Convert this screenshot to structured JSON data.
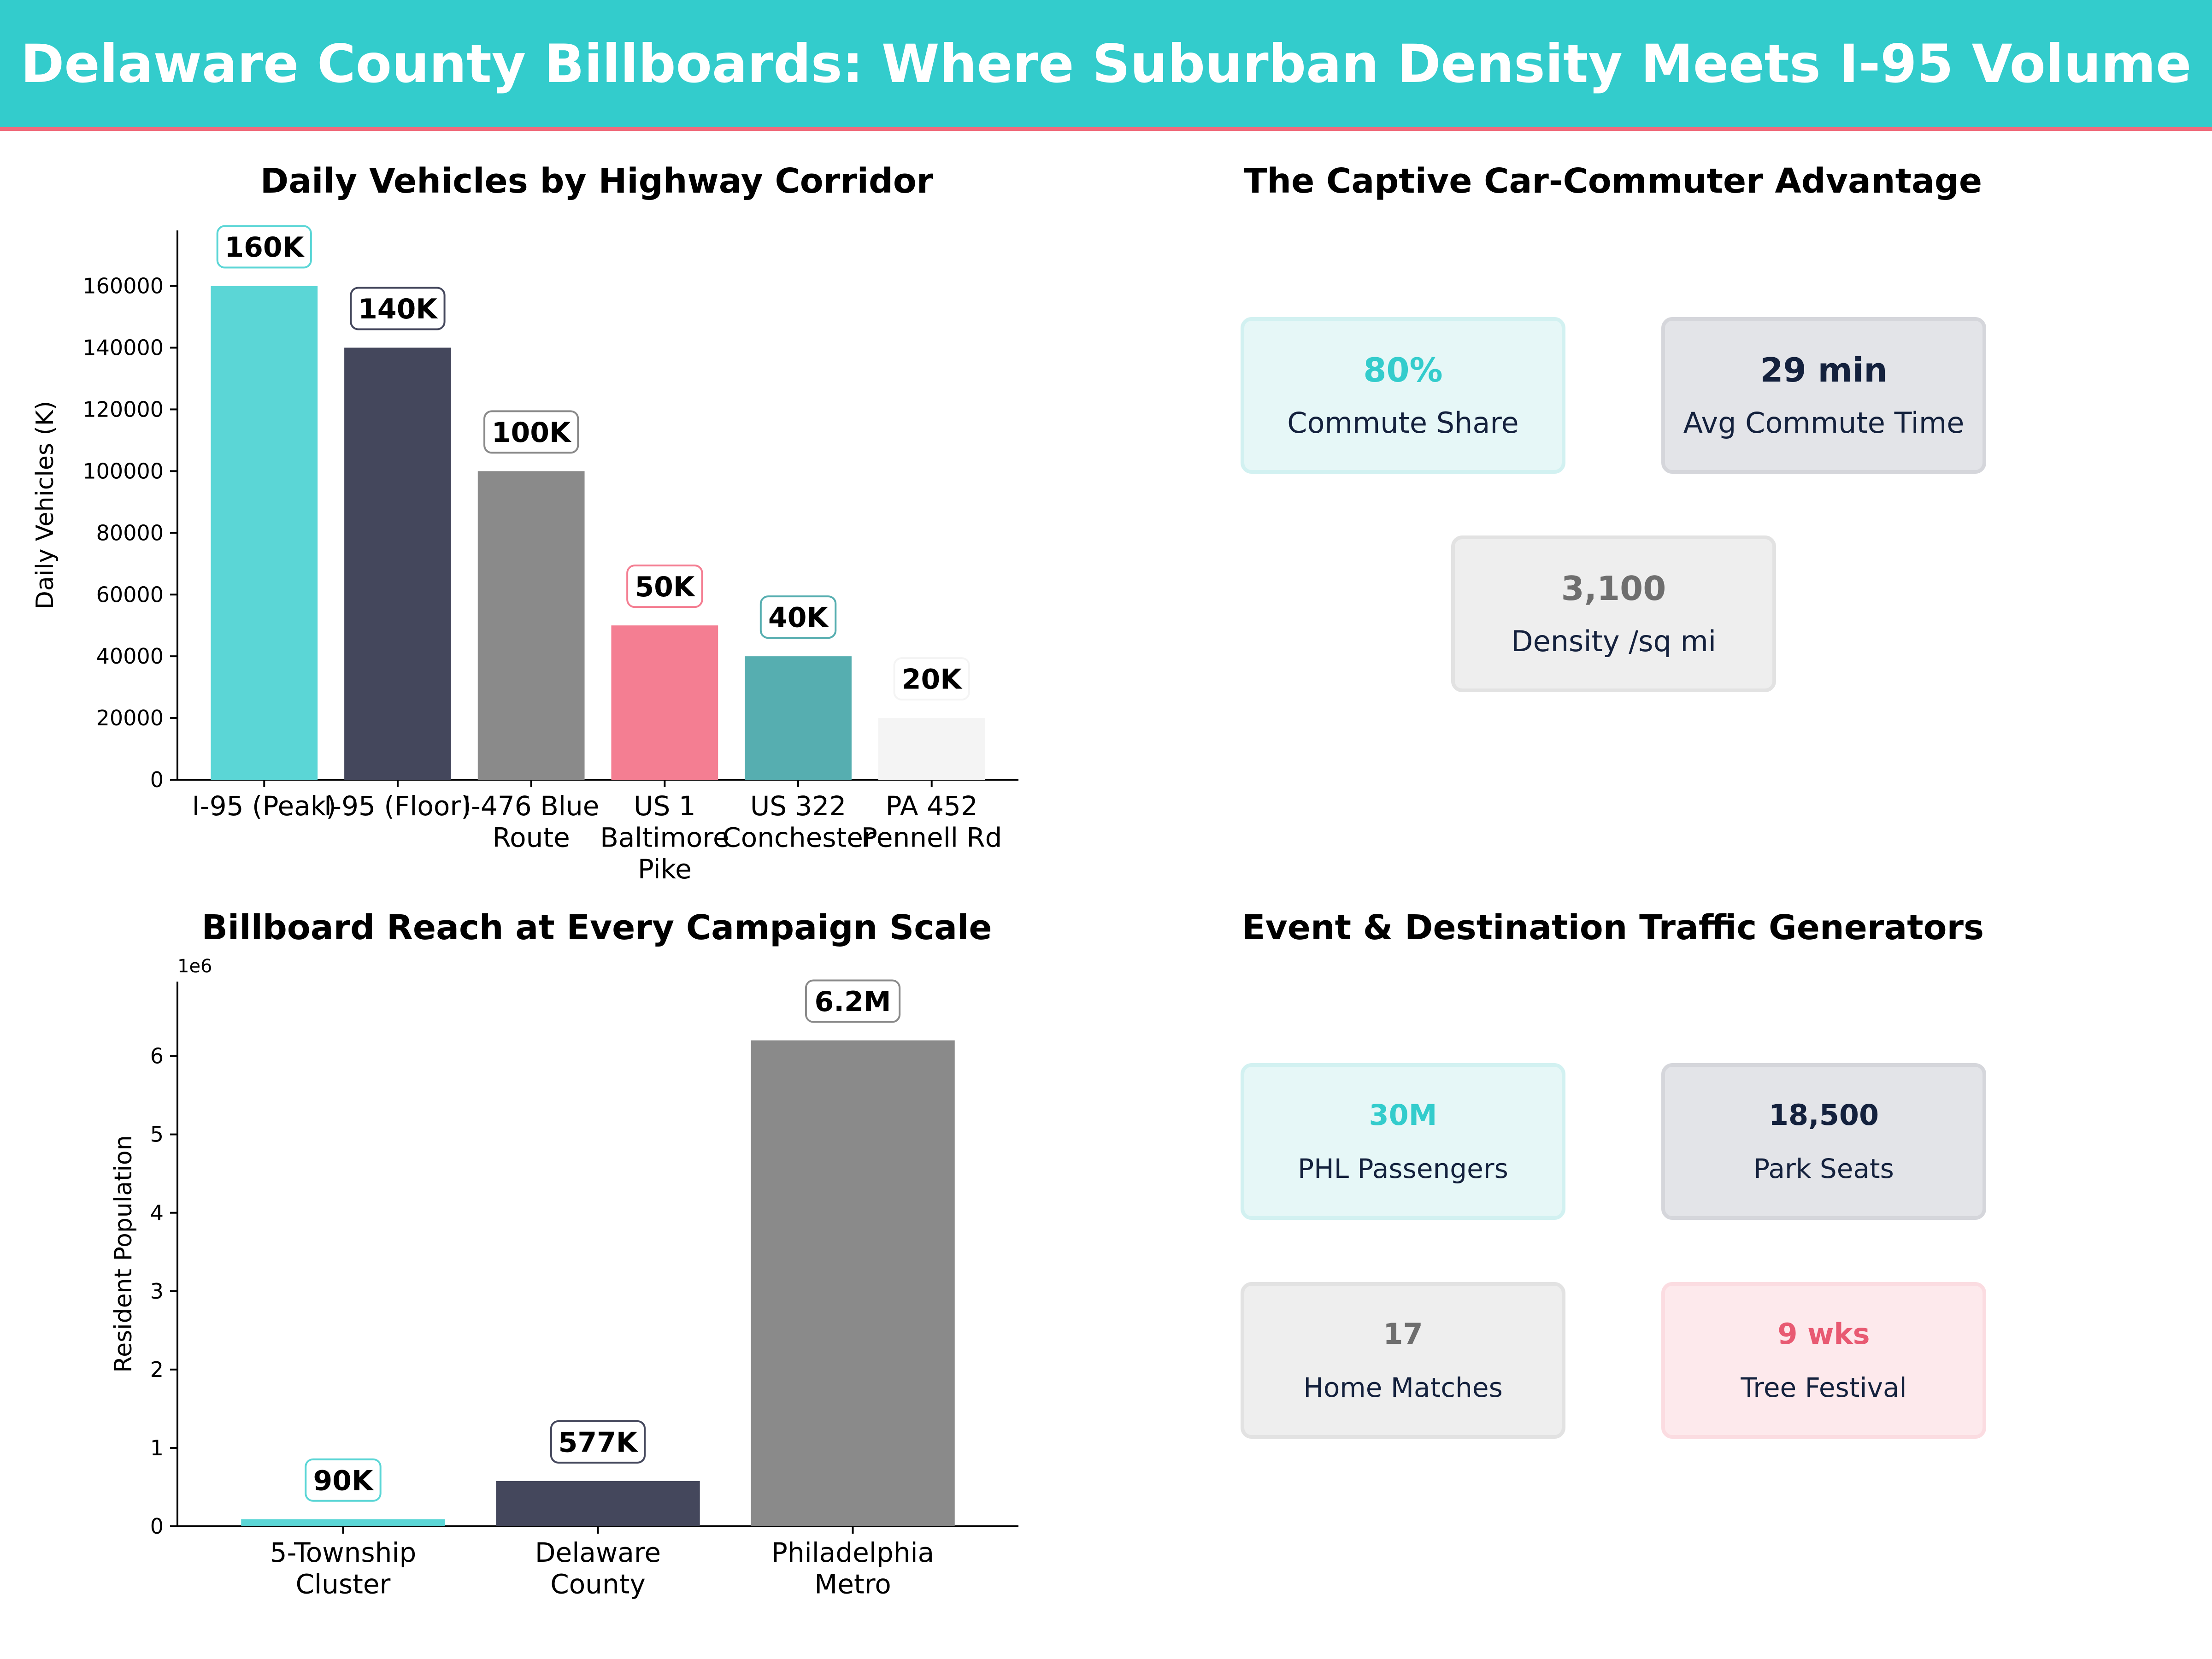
{
  "header": {
    "title": "Delaware County Billboards: Where Suburban Density Meets I-95 Volume"
  },
  "colors": {
    "banner": "#33CCCC",
    "banner_rule": "#F06D7D",
    "teal": "#5BD6D6",
    "navy": "#44475C",
    "gray": "#8A8A8A",
    "pink": "#F47E92",
    "darkteal": "#56AEB0",
    "light": "#F4F4F4"
  },
  "chart_data": [
    {
      "type": "bar",
      "title": "Daily Vehicles by Highway Corridor",
      "xlabel": "",
      "ylabel": "Daily Vehicles (K)",
      "categories": [
        "I-95 (Peak)",
        "I-95 (Floor)",
        "I-476 Blue Route",
        "US 1 Baltimore Pike",
        "US 322 Conchester",
        "PA 452 Pennell Rd"
      ],
      "values": [
        160000,
        140000,
        100000,
        50000,
        40000,
        20000
      ],
      "data_labels": [
        "160K",
        "140K",
        "100K",
        "50K",
        "40K",
        "20K"
      ],
      "bar_colors": [
        "#5BD6D6",
        "#44475C",
        "#8A8A8A",
        "#F47E92",
        "#56AEB0",
        "#F4F4F4"
      ],
      "label_border_colors": [
        "#5BD6D6",
        "#44475C",
        "#8A8A8A",
        "#F47E92",
        "#56AEB0",
        "#F4F4F4"
      ],
      "yticks": [
        0,
        20000,
        40000,
        60000,
        80000,
        100000,
        120000,
        140000,
        160000
      ],
      "ylim": [
        0,
        178000
      ],
      "grid": false
    },
    {
      "type": "bar",
      "title": "Billboard Reach at Every Campaign Scale",
      "xlabel": "",
      "ylabel": "Resident Population",
      "offset_text": "1e6",
      "categories": [
        "5-Township Cluster",
        "Delaware County",
        "Philadelphia Metro"
      ],
      "values": [
        90000,
        577000,
        6200000
      ],
      "data_labels": [
        "90K",
        "577K",
        "6.2M"
      ],
      "bar_colors": [
        "#5BD6D6",
        "#44475C",
        "#8A8A8A"
      ],
      "label_border_colors": [
        "#5BD6D6",
        "#44475C",
        "#8A8A8A"
      ],
      "yticks": [
        0,
        1000000,
        2000000,
        3000000,
        4000000,
        5000000,
        6000000
      ],
      "ytick_labels": [
        "0",
        "1",
        "2",
        "3",
        "4",
        "5",
        "6"
      ],
      "ylim": [
        0,
        6950000
      ],
      "grid": false
    }
  ],
  "kpi_panel": {
    "title": "The Captive Car-Commuter Advantage",
    "cards": [
      {
        "value": "80%",
        "label": "Commute Share",
        "value_color": "#33CCCC",
        "bg": "#E6F7F7",
        "border": "#D2F1F1"
      },
      {
        "value": "29 min",
        "label": "Avg Commute Time",
        "value_color": "#14213D",
        "bg": "#E3E4E8",
        "border": "#D5D6DB"
      },
      {
        "value": "3,100",
        "label": "Density /sq mi",
        "value_color": "#6E6E6E",
        "bg": "#EEEEEE",
        "border": "#E2E2E2"
      }
    ]
  },
  "events_panel": {
    "title": "Event & Destination Traffic Generators",
    "cards": [
      {
        "value": "30M",
        "label": "PHL  Passengers",
        "value_color": "#33CCCC",
        "bg": "#E6F7F7",
        "border": "#D2F1F1"
      },
      {
        "value": "18,500",
        "label": "Park Seats",
        "value_color": "#14213D",
        "bg": "#E3E4E8",
        "border": "#D5D6DB"
      },
      {
        "value": "17",
        "label": "Home Matches",
        "value_color": "#6E6E6E",
        "bg": "#EEEEEE",
        "border": "#E2E2E2"
      },
      {
        "value": "9 wks",
        "label": "Tree Festival",
        "value_color": "#E85A72",
        "bg": "#FDE9EC",
        "border": "#FBDCE1"
      }
    ]
  }
}
